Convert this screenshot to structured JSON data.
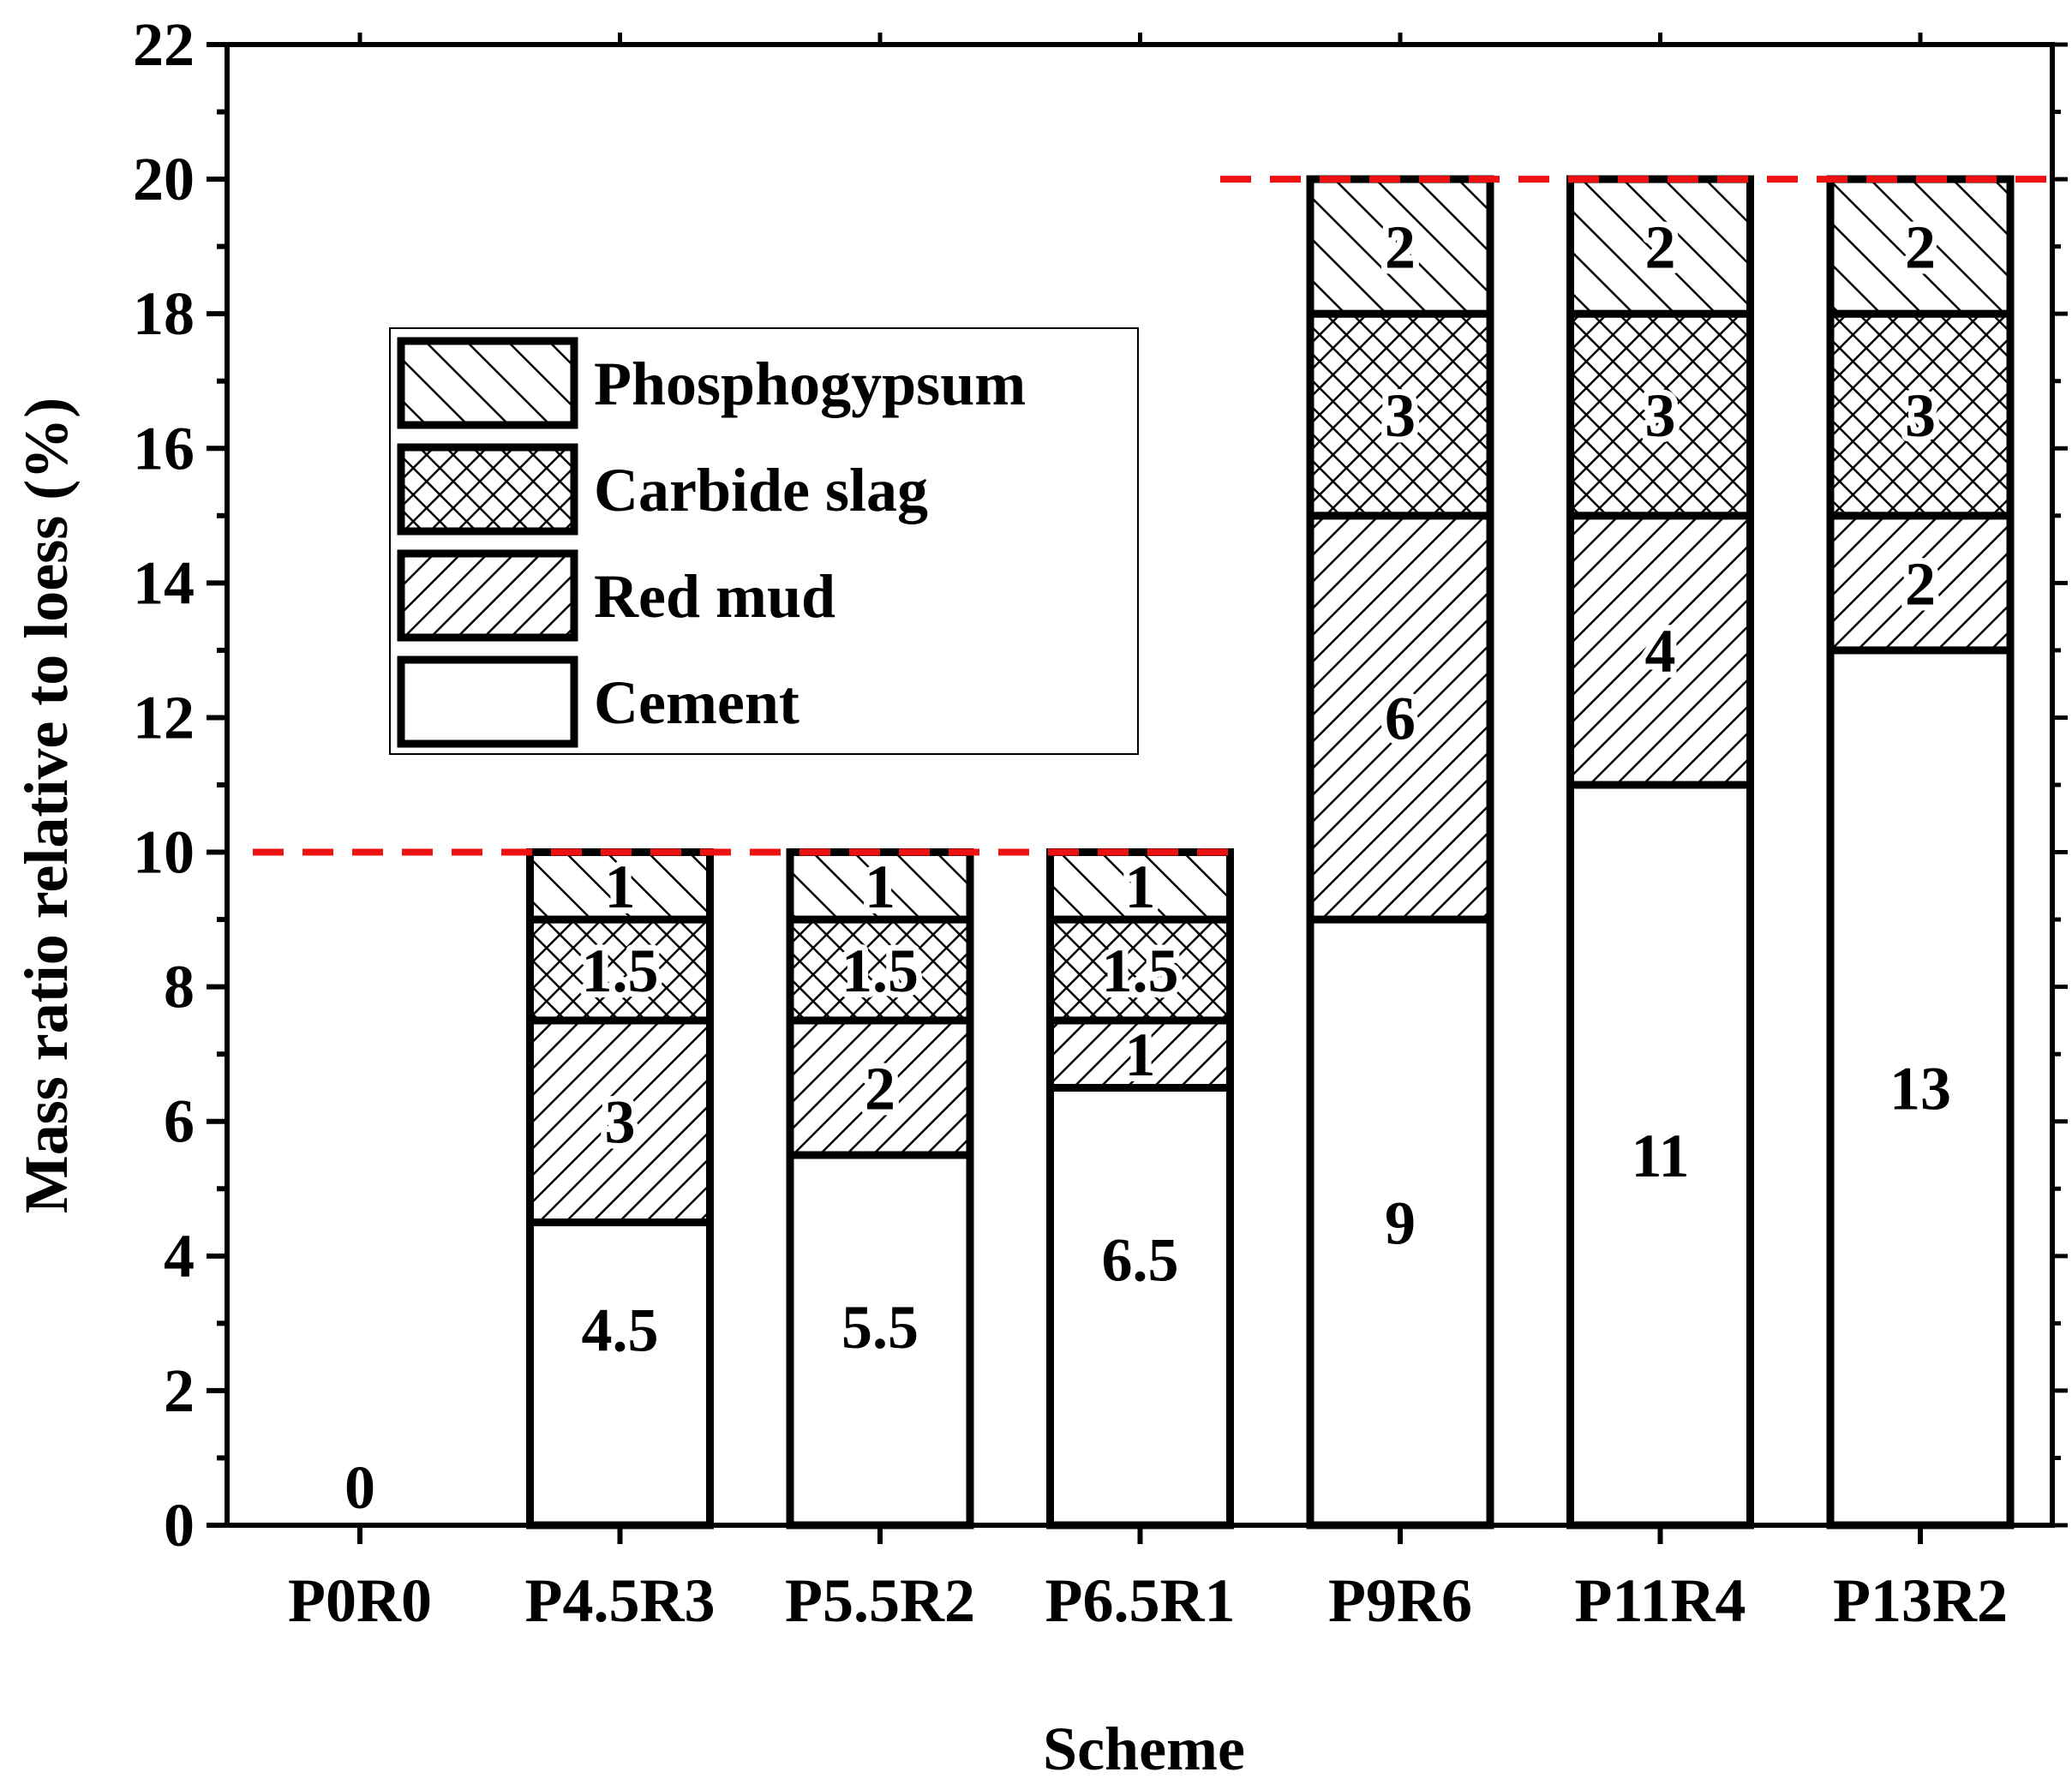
{
  "chart_data": {
    "type": "bar",
    "stacked": true,
    "xlabel": "Scheme",
    "ylabel": "Mass ratio relative to loess (%)",
    "ylim": [
      0,
      22
    ],
    "yticks": [
      0,
      2,
      4,
      6,
      8,
      10,
      12,
      14,
      16,
      18,
      20,
      22
    ],
    "categories": [
      "P0R0",
      "P4.5R3",
      "P5.5R2",
      "P6.5R1",
      "P9R6",
      "P11R4",
      "P13R2"
    ],
    "series": [
      {
        "name": "Cement",
        "pattern": "none",
        "values": [
          0,
          4.5,
          5.5,
          6.5,
          9,
          11,
          13
        ],
        "labels": [
          "0",
          "4.5",
          "5.5",
          "6.5",
          "9",
          "11",
          "13"
        ]
      },
      {
        "name": "Red mud",
        "pattern": "diagonal-forward",
        "values": [
          0,
          3,
          2,
          1,
          6,
          4,
          2
        ],
        "labels": [
          "",
          "3",
          "2",
          "1",
          "6",
          "4",
          "2"
        ]
      },
      {
        "name": "Carbide slag",
        "pattern": "crosshatch",
        "values": [
          0,
          1.5,
          1.5,
          1.5,
          3,
          3,
          3
        ],
        "labels": [
          "",
          "1.5",
          "1.5",
          "1.5",
          "3",
          "3",
          "3"
        ]
      },
      {
        "name": "Phosphogypsum",
        "pattern": "diagonal-backward",
        "values": [
          0,
          1,
          1,
          1,
          2,
          2,
          2
        ],
        "labels": [
          "",
          "1",
          "1",
          "1",
          "2",
          "2",
          "2"
        ]
      }
    ],
    "reference_lines": [
      {
        "y": 10,
        "x_from": "P0R0",
        "x_to": "P6.5R1",
        "color": "#ee1111",
        "style": "dashed"
      },
      {
        "y": 20,
        "x_from": "P9R6",
        "x_to": "P13R2",
        "color": "#ee1111",
        "style": "dashed"
      }
    ],
    "legend": {
      "position": "upper-left",
      "order": [
        "Phosphogypsum",
        "Carbide slag",
        "Red mud",
        "Cement"
      ]
    },
    "grid": false
  }
}
